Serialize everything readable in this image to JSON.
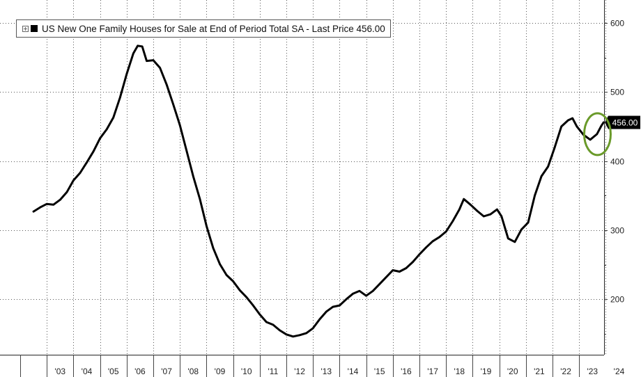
{
  "chart_data": {
    "type": "line",
    "title": "US New One Family Houses for Sale at End of Period Total SA - Last Price 456.00",
    "series": [
      {
        "name": "US New One Family Houses for Sale at End of Period Total SA",
        "color": "#000000",
        "last_price_label": "456.00",
        "points": [
          [
            "2002-07",
            327
          ],
          [
            "2002-10",
            333
          ],
          [
            "2003-01",
            338
          ],
          [
            "2003-04",
            337
          ],
          [
            "2003-07",
            344
          ],
          [
            "2003-10",
            355
          ],
          [
            "2004-01",
            372
          ],
          [
            "2004-04",
            383
          ],
          [
            "2004-07",
            398
          ],
          [
            "2004-10",
            414
          ],
          [
            "2005-01",
            433
          ],
          [
            "2005-04",
            446
          ],
          [
            "2005-07",
            463
          ],
          [
            "2005-10",
            492
          ],
          [
            "2006-01",
            526
          ],
          [
            "2006-04",
            556
          ],
          [
            "2006-06",
            567
          ],
          [
            "2006-08",
            566
          ],
          [
            "2006-10",
            545
          ],
          [
            "2007-01",
            546
          ],
          [
            "2007-04",
            535
          ],
          [
            "2007-07",
            511
          ],
          [
            "2007-10",
            482
          ],
          [
            "2008-01",
            452
          ],
          [
            "2008-04",
            415
          ],
          [
            "2008-07",
            378
          ],
          [
            "2008-10",
            345
          ],
          [
            "2009-01",
            306
          ],
          [
            "2009-04",
            274
          ],
          [
            "2009-07",
            251
          ],
          [
            "2009-10",
            235
          ],
          [
            "2010-01",
            226
          ],
          [
            "2010-04",
            213
          ],
          [
            "2010-07",
            203
          ],
          [
            "2010-10",
            191
          ],
          [
            "2011-01",
            178
          ],
          [
            "2011-04",
            167
          ],
          [
            "2011-07",
            163
          ],
          [
            "2011-10",
            155
          ],
          [
            "2012-01",
            149
          ],
          [
            "2012-04",
            146
          ],
          [
            "2012-07",
            148
          ],
          [
            "2012-10",
            151
          ],
          [
            "2013-01",
            158
          ],
          [
            "2013-04",
            171
          ],
          [
            "2013-07",
            182
          ],
          [
            "2013-10",
            189
          ],
          [
            "2014-01",
            191
          ],
          [
            "2014-04",
            200
          ],
          [
            "2014-07",
            208
          ],
          [
            "2014-10",
            212
          ],
          [
            "2015-01",
            205
          ],
          [
            "2015-04",
            212
          ],
          [
            "2015-07",
            222
          ],
          [
            "2015-10",
            232
          ],
          [
            "2016-01",
            242
          ],
          [
            "2016-04",
            240
          ],
          [
            "2016-07",
            245
          ],
          [
            "2016-10",
            254
          ],
          [
            "2017-01",
            265
          ],
          [
            "2017-04",
            275
          ],
          [
            "2017-07",
            284
          ],
          [
            "2017-10",
            290
          ],
          [
            "2018-01",
            298
          ],
          [
            "2018-04",
            313
          ],
          [
            "2018-07",
            330
          ],
          [
            "2018-09",
            345
          ],
          [
            "2018-12",
            337
          ],
          [
            "2019-03",
            328
          ],
          [
            "2019-06",
            320
          ],
          [
            "2019-09",
            323
          ],
          [
            "2019-12",
            330
          ],
          [
            "2020-02",
            320
          ],
          [
            "2020-05",
            288
          ],
          [
            "2020-08",
            283
          ],
          [
            "2020-11",
            301
          ],
          [
            "2021-02",
            311
          ],
          [
            "2021-05",
            350
          ],
          [
            "2021-08",
            378
          ],
          [
            "2021-11",
            392
          ],
          [
            "2022-02",
            420
          ],
          [
            "2022-05",
            450
          ],
          [
            "2022-08",
            459
          ],
          [
            "2022-10",
            462
          ],
          [
            "2022-12",
            450
          ],
          [
            "2023-03",
            438
          ],
          [
            "2023-06",
            431
          ],
          [
            "2023-09",
            439
          ],
          [
            "2023-11",
            451
          ],
          [
            "2023-12",
            456
          ]
        ]
      }
    ],
    "x_tick_labels": [
      "'03",
      "'04",
      "'05",
      "'06",
      "'07",
      "'08",
      "'09",
      "'10",
      "'11",
      "'12",
      "'13",
      "'14",
      "'15",
      "'16",
      "'17",
      "'18",
      "'19",
      "'20",
      "'21",
      "'22",
      "'23",
      "'24"
    ],
    "y_ticks": [
      200,
      300,
      400,
      500,
      600
    ],
    "y_tick_labels": [
      "200",
      "300",
      "400",
      "500",
      "600"
    ],
    "xlim": [
      "2002-07",
      "2024-06"
    ],
    "ylim": [
      128,
      645
    ],
    "y_axis_side": "right",
    "grid": "dotted",
    "legend_position": "top-left",
    "annotation": {
      "type": "ellipse",
      "color": "#6a9a2a",
      "around": "2023 values (430-456)"
    }
  }
}
